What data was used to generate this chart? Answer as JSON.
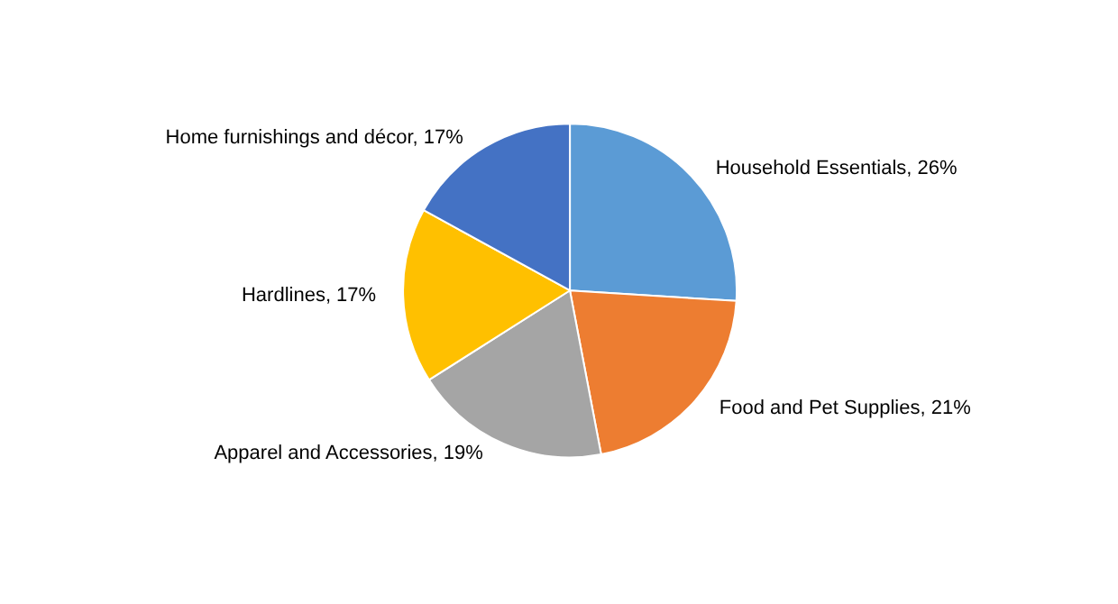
{
  "chart_data": {
    "type": "pie",
    "categories": [
      "Household Essentials",
      "Food and Pet Supplies",
      "Apparel and Accessories",
      "Hardlines",
      "Home furnishings and décor"
    ],
    "values": [
      26,
      21,
      19,
      17,
      17
    ],
    "value_labels": [
      "26%",
      "21%",
      "19%",
      "17%",
      "17%"
    ],
    "colors": [
      "#5b9bd5",
      "#ed7d31",
      "#a5a5a5",
      "#ffc000",
      "#4472c4"
    ],
    "legend": false
  }
}
